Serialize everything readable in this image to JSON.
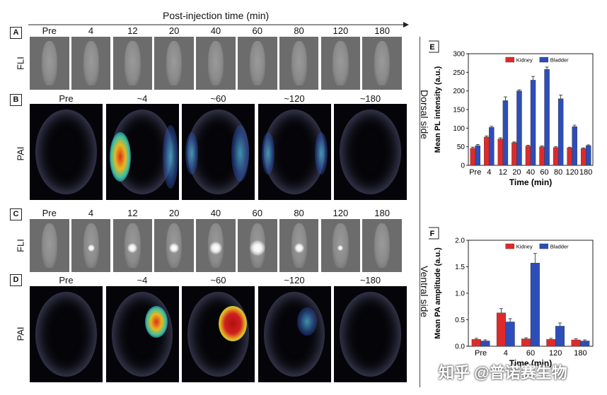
{
  "header": {
    "title": "Post-injection time (min)"
  },
  "panels": {
    "A": {
      "letter": "A",
      "row_label": "FLI",
      "columns": [
        "Pre",
        "4",
        "12",
        "20",
        "40",
        "60",
        "80",
        "120",
        "180"
      ]
    },
    "B": {
      "letter": "B",
      "row_label": "PAI",
      "columns": [
        "Pre",
        "~4",
        "~60",
        "~120",
        "~180"
      ]
    },
    "C": {
      "letter": "C",
      "row_label": "FLI",
      "columns": [
        "Pre",
        "4",
        "12",
        "20",
        "40",
        "60",
        "80",
        "120",
        "180"
      ]
    },
    "D": {
      "letter": "D",
      "row_label": "PAI",
      "columns": [
        "Pre",
        "~4",
        "~60",
        "~120",
        "~180"
      ]
    }
  },
  "side_labels": {
    "dorsal": "Dorsal side",
    "ventral": "Ventral side"
  },
  "colors": {
    "kidney": "#e02a2a",
    "bladder": "#2d4db8"
  },
  "chart_data": [
    {
      "panel": "E",
      "type": "bar",
      "title": "",
      "xlabel": "Time (min)",
      "ylabel": "Mean PL intensity (a.u.)",
      "categories": [
        "Pre",
        "4",
        "12",
        "20",
        "40",
        "60",
        "80",
        "120",
        "180"
      ],
      "ylim": [
        0,
        300
      ],
      "yticks": [
        0,
        50,
        100,
        150,
        200,
        250,
        300
      ],
      "legend": "top",
      "series": [
        {
          "name": "Kidney",
          "values": [
            46,
            76,
            71,
            61,
            52,
            50,
            48,
            47,
            45
          ],
          "errors": [
            3,
            3,
            3,
            2,
            2,
            2,
            2,
            2,
            2
          ]
        },
        {
          "name": "Bladder",
          "values": [
            53,
            102,
            174,
            200,
            229,
            258,
            179,
            104,
            53
          ],
          "errors": [
            3,
            3,
            10,
            3,
            10,
            6,
            10,
            4,
            2
          ]
        }
      ]
    },
    {
      "panel": "F",
      "type": "bar",
      "title": "",
      "xlabel": "Time (min)",
      "ylabel": "Mean PA amplitude (a.u.)",
      "categories": [
        "Pre",
        "4",
        "60",
        "120",
        "180"
      ],
      "ylim": [
        0,
        2.0
      ],
      "yticks": [
        0.0,
        0.5,
        1.0,
        1.5,
        2.0
      ],
      "legend": "top",
      "series": [
        {
          "name": "Kidney",
          "values": [
            0.13,
            0.63,
            0.14,
            0.13,
            0.12
          ],
          "errors": [
            0.02,
            0.08,
            0.02,
            0.02,
            0.02
          ]
        },
        {
          "name": "Bladder",
          "values": [
            0.1,
            0.46,
            1.57,
            0.38,
            0.1
          ],
          "errors": [
            0.02,
            0.06,
            0.18,
            0.06,
            0.02
          ]
        }
      ]
    }
  ],
  "watermark": "知乎 @普诺赛生物"
}
